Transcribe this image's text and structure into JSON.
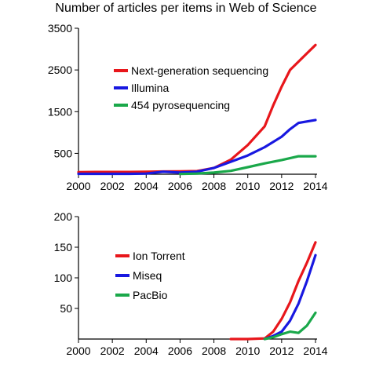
{
  "title": "Number of articles per items in Web of Science",
  "chart_data": [
    {
      "type": "line",
      "x": [
        2000,
        2001,
        2002,
        2003,
        2004,
        2005,
        2006,
        2007,
        2008,
        2009,
        2010,
        2011,
        2012,
        2013,
        2014
      ],
      "xticks": [
        2000,
        2002,
        2004,
        2006,
        2008,
        2010,
        2012,
        2014
      ],
      "yticks": [
        500,
        1500,
        2500,
        3500
      ],
      "ylim": [
        0,
        3500
      ],
      "xlim": [
        2000,
        2014
      ],
      "legend_position": "top-left",
      "series": [
        {
          "name": "Next-generation sequencing",
          "color": "#e8161b",
          "points": [
            [
              2000,
              50
            ],
            [
              2001,
              55
            ],
            [
              2002,
              55
            ],
            [
              2003,
              55
            ],
            [
              2004,
              60
            ],
            [
              2005,
              65
            ],
            [
              2006,
              70
            ],
            [
              2007,
              75
            ],
            [
              2008,
              150
            ],
            [
              2009,
              350
            ],
            [
              2010,
              700
            ],
            [
              2011,
              1150
            ],
            [
              2011.5,
              1650
            ],
            [
              2012,
              2100
            ],
            [
              2012.5,
              2500
            ],
            [
              2013,
              2700
            ],
            [
              2013.5,
              2900
            ],
            [
              2014,
              3100
            ]
          ]
        },
        {
          "name": "Illumina",
          "color": "#1818e0",
          "points": [
            [
              2000,
              10
            ],
            [
              2001,
              10
            ],
            [
              2002,
              10
            ],
            [
              2003,
              10
            ],
            [
              2004,
              15
            ],
            [
              2005,
              60
            ],
            [
              2006,
              40
            ],
            [
              2007,
              60
            ],
            [
              2008,
              150
            ],
            [
              2009,
              300
            ],
            [
              2010,
              450
            ],
            [
              2011,
              650
            ],
            [
              2012,
              900
            ],
            [
              2012.5,
              1080
            ],
            [
              2013,
              1230
            ],
            [
              2014,
              1300
            ]
          ]
        },
        {
          "name": "454 pyrosequencing",
          "color": "#1aa84a",
          "points": [
            [
              2006,
              5
            ],
            [
              2007,
              15
            ],
            [
              2008,
              40
            ],
            [
              2009,
              80
            ],
            [
              2010,
              170
            ],
            [
              2011,
              260
            ],
            [
              2012,
              340
            ],
            [
              2013,
              430
            ],
            [
              2014,
              430
            ]
          ]
        }
      ]
    },
    {
      "type": "line",
      "x": [
        2009,
        2010,
        2011,
        2012,
        2013,
        2014
      ],
      "xticks": [
        2000,
        2002,
        2004,
        2006,
        2008,
        2010,
        2012,
        2014
      ],
      "yticks": [
        50,
        100,
        150,
        200
      ],
      "ylim": [
        0,
        200
      ],
      "xlim": [
        2000,
        2014
      ],
      "legend_position": "center-left",
      "series": [
        {
          "name": "Ion Torrent",
          "color": "#e8161b",
          "points": [
            [
              2009,
              0
            ],
            [
              2010,
              0
            ],
            [
              2011,
              1
            ],
            [
              2011.5,
              12
            ],
            [
              2012,
              33
            ],
            [
              2012.5,
              60
            ],
            [
              2013,
              95
            ],
            [
              2013.5,
              125
            ],
            [
              2014,
              158
            ]
          ]
        },
        {
          "name": "Miseq",
          "color": "#1818e0",
          "points": [
            [
              2011,
              0
            ],
            [
              2011.5,
              5
            ],
            [
              2012,
              12
            ],
            [
              2012.5,
              30
            ],
            [
              2013,
              58
            ],
            [
              2013.5,
              95
            ],
            [
              2014,
              137
            ]
          ]
        },
        {
          "name": "PacBio",
          "color": "#1aa84a",
          "points": [
            [
              2011,
              0
            ],
            [
              2011.5,
              3
            ],
            [
              2012,
              8
            ],
            [
              2012.5,
              12
            ],
            [
              2013,
              10
            ],
            [
              2013.5,
              22
            ],
            [
              2014,
              43
            ]
          ]
        }
      ]
    }
  ]
}
